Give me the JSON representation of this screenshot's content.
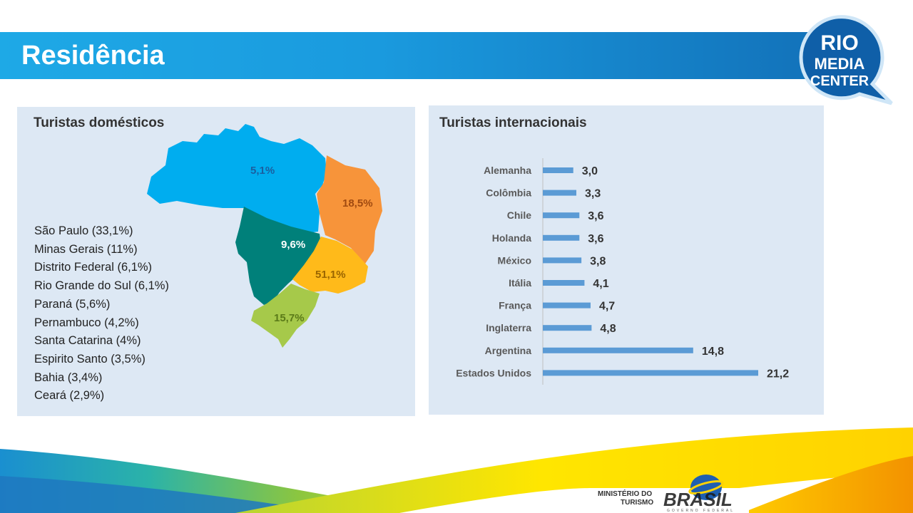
{
  "header": {
    "title": "Residência",
    "logo_lines": [
      "RIO",
      "MEDIA",
      "CENTER"
    ]
  },
  "domestic": {
    "title": "Turistas domésticos",
    "region_labels": {
      "north": "5,1%",
      "northeast": "18,5%",
      "center_west": "9,6%",
      "southeast": "51,1%",
      "south": "15,7%"
    },
    "states": [
      "São Paulo (33,1%)",
      "Minas Gerais (11%)",
      "Distrito Federal (6,1%)",
      "Rio Grande do Sul (6,1%)",
      "Paraná (5,6%)",
      "Pernambuco (4,2%)",
      "Santa Catarina (4%)",
      "Espirito Santo (3,5%)",
      "Bahia (3,4%)",
      "Ceará (2,9%)"
    ]
  },
  "chart_data": {
    "type": "bar",
    "orientation": "horizontal",
    "title": "Turistas internacionais",
    "categories": [
      "Alemanha",
      "Colômbia",
      "Chile",
      "Holanda",
      "México",
      "Itália",
      "França",
      "Inglaterra",
      "Argentina",
      "Estados Unidos"
    ],
    "values": [
      3.0,
      3.3,
      3.6,
      3.6,
      3.8,
      4.1,
      4.7,
      4.8,
      14.8,
      21.2
    ],
    "value_labels": [
      "3,0",
      "3,3",
      "3,6",
      "3,6",
      "3,8",
      "4,1",
      "4,7",
      "4,8",
      "14,8",
      "21,2"
    ],
    "xlim": [
      0,
      21.2
    ],
    "grid": false,
    "bar_color": "#5b9bd5"
  },
  "footer": {
    "ministry_lines": [
      "MINISTÉRIO DO",
      "TURISMO"
    ],
    "brand": "BRASIL",
    "brand_sub": "GOVERNO FEDERAL"
  },
  "colors": {
    "title_bar": "#1a9ade",
    "panel": "#dde8f4",
    "north": "#00adef",
    "northeast": "#f7943a",
    "center_west": "#00807a",
    "southeast": "#ffba1a",
    "south": "#a6c94a"
  }
}
